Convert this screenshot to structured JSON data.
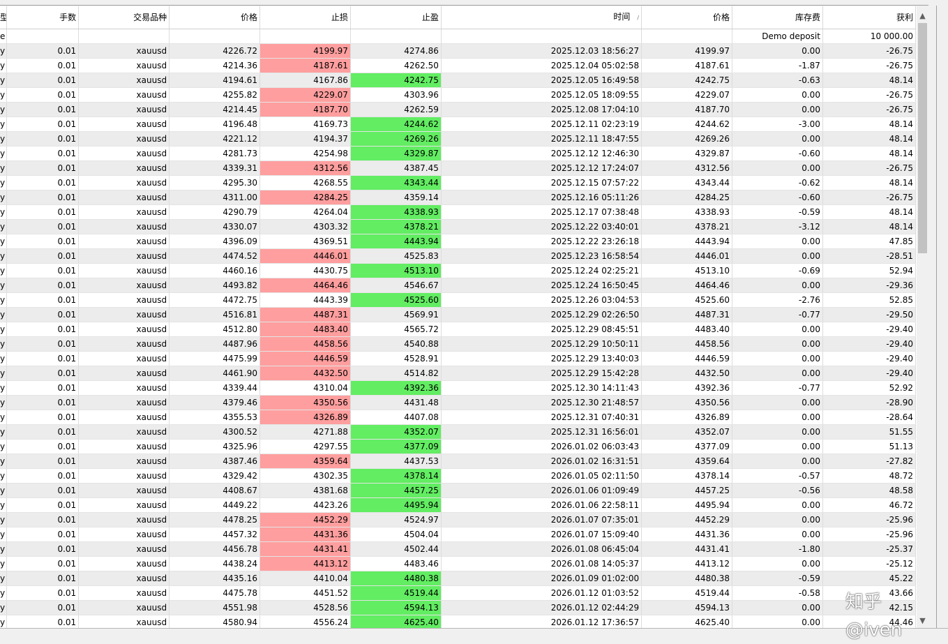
{
  "columns": [
    "型",
    "手数",
    "交易品种",
    "价格",
    "止损",
    "止盈",
    "时间",
    "价格",
    "库存费",
    "获利"
  ],
  "sort_indicator": "/",
  "deposit_row": {
    "type": "e",
    "label": "Demo deposit",
    "amount": "10 000.00"
  },
  "rows": [
    {
      "type": "y",
      "lots": "0.01",
      "symbol": "xauusd",
      "price": "4226.72",
      "sl": "4199.97",
      "tp": "4274.86",
      "time": "2025.12.03 18:56:27",
      "close": "4199.97",
      "swap": "0.00",
      "profit": "-26.75",
      "hit": "sl"
    },
    {
      "type": "y",
      "lots": "0.01",
      "symbol": "xauusd",
      "price": "4214.36",
      "sl": "4187.61",
      "tp": "4262.50",
      "time": "2025.12.04 05:02:58",
      "close": "4187.61",
      "swap": "-1.87",
      "profit": "-26.75",
      "hit": "sl"
    },
    {
      "type": "y",
      "lots": "0.01",
      "symbol": "xauusd",
      "price": "4194.61",
      "sl": "4167.86",
      "tp": "4242.75",
      "time": "2025.12.05 16:49:58",
      "close": "4242.75",
      "swap": "-0.63",
      "profit": "48.14",
      "hit": "tp"
    },
    {
      "type": "y",
      "lots": "0.01",
      "symbol": "xauusd",
      "price": "4255.82",
      "sl": "4229.07",
      "tp": "4303.96",
      "time": "2025.12.05 18:09:55",
      "close": "4229.07",
      "swap": "0.00",
      "profit": "-26.75",
      "hit": "sl"
    },
    {
      "type": "y",
      "lots": "0.01",
      "symbol": "xauusd",
      "price": "4214.45",
      "sl": "4187.70",
      "tp": "4262.59",
      "time": "2025.12.08 17:04:10",
      "close": "4187.70",
      "swap": "0.00",
      "profit": "-26.75",
      "hit": "sl"
    },
    {
      "type": "y",
      "lots": "0.01",
      "symbol": "xauusd",
      "price": "4196.48",
      "sl": "4169.73",
      "tp": "4244.62",
      "time": "2025.12.11 02:23:19",
      "close": "4244.62",
      "swap": "-3.00",
      "profit": "48.14",
      "hit": "tp"
    },
    {
      "type": "y",
      "lots": "0.01",
      "symbol": "xauusd",
      "price": "4221.12",
      "sl": "4194.37",
      "tp": "4269.26",
      "time": "2025.12.11 18:47:55",
      "close": "4269.26",
      "swap": "0.00",
      "profit": "48.14",
      "hit": "tp"
    },
    {
      "type": "y",
      "lots": "0.01",
      "symbol": "xauusd",
      "price": "4281.73",
      "sl": "4254.98",
      "tp": "4329.87",
      "time": "2025.12.12 12:46:30",
      "close": "4329.87",
      "swap": "-0.60",
      "profit": "48.14",
      "hit": "tp"
    },
    {
      "type": "y",
      "lots": "0.01",
      "symbol": "xauusd",
      "price": "4339.31",
      "sl": "4312.56",
      "tp": "4387.45",
      "time": "2025.12.12 17:24:07",
      "close": "4312.56",
      "swap": "0.00",
      "profit": "-26.75",
      "hit": "sl"
    },
    {
      "type": "y",
      "lots": "0.01",
      "symbol": "xauusd",
      "price": "4295.30",
      "sl": "4268.55",
      "tp": "4343.44",
      "time": "2025.12.15 07:57:22",
      "close": "4343.44",
      "swap": "-0.62",
      "profit": "48.14",
      "hit": "tp"
    },
    {
      "type": "y",
      "lots": "0.01",
      "symbol": "xauusd",
      "price": "4311.00",
      "sl": "4284.25",
      "tp": "4359.14",
      "time": "2025.12.16 05:11:26",
      "close": "4284.25",
      "swap": "-0.60",
      "profit": "-26.75",
      "hit": "sl"
    },
    {
      "type": "y",
      "lots": "0.01",
      "symbol": "xauusd",
      "price": "4290.79",
      "sl": "4264.04",
      "tp": "4338.93",
      "time": "2025.12.17 07:38:48",
      "close": "4338.93",
      "swap": "-0.59",
      "profit": "48.14",
      "hit": "tp"
    },
    {
      "type": "y",
      "lots": "0.01",
      "symbol": "xauusd",
      "price": "4330.07",
      "sl": "4303.32",
      "tp": "4378.21",
      "time": "2025.12.22 03:40:01",
      "close": "4378.21",
      "swap": "-3.12",
      "profit": "48.14",
      "hit": "tp"
    },
    {
      "type": "y",
      "lots": "0.01",
      "symbol": "xauusd",
      "price": "4396.09",
      "sl": "4369.51",
      "tp": "4443.94",
      "time": "2025.12.22 23:26:18",
      "close": "4443.94",
      "swap": "0.00",
      "profit": "47.85",
      "hit": "tp"
    },
    {
      "type": "y",
      "lots": "0.01",
      "symbol": "xauusd",
      "price": "4474.52",
      "sl": "4446.01",
      "tp": "4525.83",
      "time": "2025.12.23 16:58:54",
      "close": "4446.01",
      "swap": "0.00",
      "profit": "-28.51",
      "hit": "sl"
    },
    {
      "type": "y",
      "lots": "0.01",
      "symbol": "xauusd",
      "price": "4460.16",
      "sl": "4430.75",
      "tp": "4513.10",
      "time": "2025.12.24 02:25:21",
      "close": "4513.10",
      "swap": "-0.69",
      "profit": "52.94",
      "hit": "tp"
    },
    {
      "type": "y",
      "lots": "0.01",
      "symbol": "xauusd",
      "price": "4493.82",
      "sl": "4464.46",
      "tp": "4546.67",
      "time": "2025.12.24 16:50:45",
      "close": "4464.46",
      "swap": "0.00",
      "profit": "-29.36",
      "hit": "sl"
    },
    {
      "type": "y",
      "lots": "0.01",
      "symbol": "xauusd",
      "price": "4472.75",
      "sl": "4443.39",
      "tp": "4525.60",
      "time": "2025.12.26 03:04:53",
      "close": "4525.60",
      "swap": "-2.76",
      "profit": "52.85",
      "hit": "tp"
    },
    {
      "type": "y",
      "lots": "0.01",
      "symbol": "xauusd",
      "price": "4516.81",
      "sl": "4487.31",
      "tp": "4569.91",
      "time": "2025.12.29 02:26:50",
      "close": "4487.31",
      "swap": "-0.77",
      "profit": "-29.50",
      "hit": "sl"
    },
    {
      "type": "y",
      "lots": "0.01",
      "symbol": "xauusd",
      "price": "4512.80",
      "sl": "4483.40",
      "tp": "4565.72",
      "time": "2025.12.29 08:45:51",
      "close": "4483.40",
      "swap": "0.00",
      "profit": "-29.40",
      "hit": "sl"
    },
    {
      "type": "y",
      "lots": "0.01",
      "symbol": "xauusd",
      "price": "4487.96",
      "sl": "4458.56",
      "tp": "4540.88",
      "time": "2025.12.29 10:50:11",
      "close": "4458.56",
      "swap": "0.00",
      "profit": "-29.40",
      "hit": "sl"
    },
    {
      "type": "y",
      "lots": "0.01",
      "symbol": "xauusd",
      "price": "4475.99",
      "sl": "4446.59",
      "tp": "4528.91",
      "time": "2025.12.29 13:40:03",
      "close": "4446.59",
      "swap": "0.00",
      "profit": "-29.40",
      "hit": "sl"
    },
    {
      "type": "y",
      "lots": "0.01",
      "symbol": "xauusd",
      "price": "4461.90",
      "sl": "4432.50",
      "tp": "4514.82",
      "time": "2025.12.29 15:42:28",
      "close": "4432.50",
      "swap": "0.00",
      "profit": "-29.40",
      "hit": "sl"
    },
    {
      "type": "y",
      "lots": "0.01",
      "symbol": "xauusd",
      "price": "4339.44",
      "sl": "4310.04",
      "tp": "4392.36",
      "time": "2025.12.30 14:11:43",
      "close": "4392.36",
      "swap": "-0.77",
      "profit": "52.92",
      "hit": "tp"
    },
    {
      "type": "y",
      "lots": "0.01",
      "symbol": "xauusd",
      "price": "4379.46",
      "sl": "4350.56",
      "tp": "4431.48",
      "time": "2025.12.30 21:48:57",
      "close": "4350.56",
      "swap": "0.00",
      "profit": "-28.90",
      "hit": "sl"
    },
    {
      "type": "y",
      "lots": "0.01",
      "symbol": "xauusd",
      "price": "4355.53",
      "sl": "4326.89",
      "tp": "4407.08",
      "time": "2025.12.31 07:40:31",
      "close": "4326.89",
      "swap": "0.00",
      "profit": "-28.64",
      "hit": "sl"
    },
    {
      "type": "y",
      "lots": "0.01",
      "symbol": "xauusd",
      "price": "4300.52",
      "sl": "4271.88",
      "tp": "4352.07",
      "time": "2025.12.31 16:56:01",
      "close": "4352.07",
      "swap": "0.00",
      "profit": "51.55",
      "hit": "tp"
    },
    {
      "type": "y",
      "lots": "0.01",
      "symbol": "xauusd",
      "price": "4325.96",
      "sl": "4297.55",
      "tp": "4377.09",
      "time": "2026.01.02 06:03:43",
      "close": "4377.09",
      "swap": "0.00",
      "profit": "51.13",
      "hit": "tp"
    },
    {
      "type": "y",
      "lots": "0.01",
      "symbol": "xauusd",
      "price": "4387.46",
      "sl": "4359.64",
      "tp": "4437.53",
      "time": "2026.01.02 16:31:51",
      "close": "4359.64",
      "swap": "0.00",
      "profit": "-27.82",
      "hit": "sl"
    },
    {
      "type": "y",
      "lots": "0.01",
      "symbol": "xauusd",
      "price": "4329.42",
      "sl": "4302.35",
      "tp": "4378.14",
      "time": "2026.01.05 02:11:50",
      "close": "4378.14",
      "swap": "-0.57",
      "profit": "48.72",
      "hit": "tp"
    },
    {
      "type": "y",
      "lots": "0.01",
      "symbol": "xauusd",
      "price": "4408.67",
      "sl": "4381.68",
      "tp": "4457.25",
      "time": "2026.01.06 01:09:49",
      "close": "4457.25",
      "swap": "-0.56",
      "profit": "48.58",
      "hit": "tp"
    },
    {
      "type": "y",
      "lots": "0.01",
      "symbol": "xauusd",
      "price": "4449.22",
      "sl": "4423.26",
      "tp": "4495.94",
      "time": "2026.01.06 22:58:11",
      "close": "4495.94",
      "swap": "0.00",
      "profit": "46.72",
      "hit": "tp"
    },
    {
      "type": "y",
      "lots": "0.01",
      "symbol": "xauusd",
      "price": "4478.25",
      "sl": "4452.29",
      "tp": "4524.97",
      "time": "2026.01.07 07:35:01",
      "close": "4452.29",
      "swap": "0.00",
      "profit": "-25.96",
      "hit": "sl"
    },
    {
      "type": "y",
      "lots": "0.01",
      "symbol": "xauusd",
      "price": "4457.32",
      "sl": "4431.36",
      "tp": "4504.04",
      "time": "2026.01.07 15:09:40",
      "close": "4431.36",
      "swap": "0.00",
      "profit": "-25.96",
      "hit": "sl"
    },
    {
      "type": "y",
      "lots": "0.01",
      "symbol": "xauusd",
      "price": "4456.78",
      "sl": "4431.41",
      "tp": "4502.44",
      "time": "2026.01.08 06:45:04",
      "close": "4431.41",
      "swap": "-1.80",
      "profit": "-25.37",
      "hit": "sl"
    },
    {
      "type": "y",
      "lots": "0.01",
      "symbol": "xauusd",
      "price": "4438.24",
      "sl": "4413.12",
      "tp": "4483.46",
      "time": "2026.01.08 14:05:37",
      "close": "4413.12",
      "swap": "0.00",
      "profit": "-25.12",
      "hit": "sl"
    },
    {
      "type": "y",
      "lots": "0.01",
      "symbol": "xauusd",
      "price": "4435.16",
      "sl": "4410.04",
      "tp": "4480.38",
      "time": "2026.01.09 01:02:00",
      "close": "4480.38",
      "swap": "-0.59",
      "profit": "45.22",
      "hit": "tp"
    },
    {
      "type": "y",
      "lots": "0.01",
      "symbol": "xauusd",
      "price": "4475.78",
      "sl": "4451.52",
      "tp": "4519.44",
      "time": "2026.01.12 01:03:52",
      "close": "4519.44",
      "swap": "-0.58",
      "profit": "43.66",
      "hit": "tp"
    },
    {
      "type": "y",
      "lots": "0.01",
      "symbol": "xauusd",
      "price": "4551.98",
      "sl": "4528.56",
      "tp": "4594.13",
      "time": "2026.01.12 02:44:29",
      "close": "4594.13",
      "swap": "0.00",
      "profit": "42.15",
      "hit": "tp"
    },
    {
      "type": "y",
      "lots": "0.01",
      "symbol": "xauusd",
      "price": "4580.94",
      "sl": "4556.24",
      "tp": "4625.40",
      "time": "2026.01.12 17:36:57",
      "close": "4625.40",
      "swap": "0.00",
      "profit": "44.46",
      "hit": "tp"
    }
  ],
  "colors": {
    "sl_hit": "#ff9e9e",
    "tp_hit": "#62ed62",
    "row_shade": "#ececec"
  },
  "scrollbar": {
    "up_icon": "▲",
    "down_icon": "▼"
  },
  "watermark": "知乎 @iven"
}
